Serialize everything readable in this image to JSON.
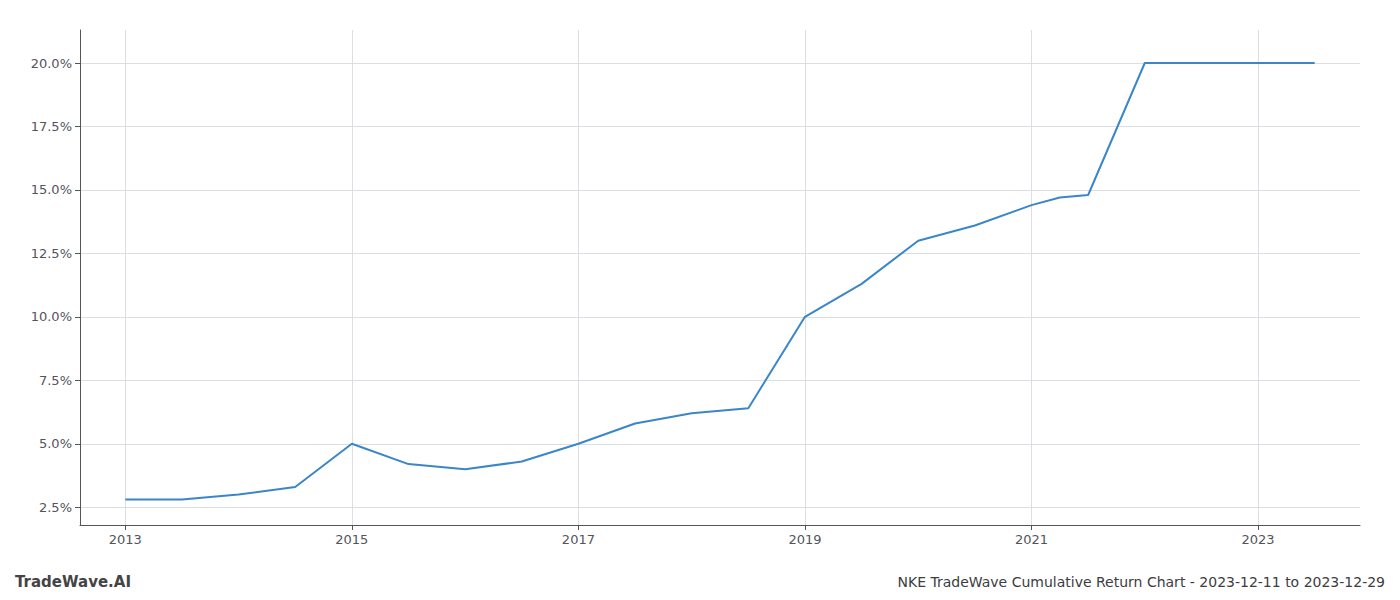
{
  "chart_data": {
    "type": "line",
    "title": "NKE TradeWave Cumulative Return Chart - 2023-12-11 to 2023-12-29",
    "annotations": [
      "TradeWave.AI"
    ],
    "x": [
      2013.0,
      2013.5,
      2014.0,
      2014.5,
      2015.0,
      2015.5,
      2016.0,
      2016.5,
      2017.0,
      2017.5,
      2018.0,
      2018.5,
      2019.0,
      2019.5,
      2020.0,
      2020.5,
      2021.0,
      2021.25,
      2021.5,
      2022.0,
      2022.5,
      2023.0,
      2023.5
    ],
    "values": [
      0.028,
      0.028,
      0.03,
      0.033,
      0.05,
      0.042,
      0.04,
      0.043,
      0.05,
      0.058,
      0.062,
      0.064,
      0.1,
      0.113,
      0.13,
      0.136,
      0.144,
      0.147,
      0.148,
      0.2,
      0.2,
      0.2,
      0.2
    ],
    "color": "#3a86c8",
    "xlim": [
      2012.6,
      2023.9
    ],
    "ylim": [
      0.018,
      0.213
    ],
    "xticks": [
      2013,
      2015,
      2017,
      2019,
      2021,
      2023
    ],
    "yticks": [
      {
        "value": 0.025,
        "label": "2.5%"
      },
      {
        "value": 0.05,
        "label": "5.0%"
      },
      {
        "value": 0.075,
        "label": "7.5%"
      },
      {
        "value": 0.1,
        "label": "10.0%"
      },
      {
        "value": 0.125,
        "label": "12.5%"
      },
      {
        "value": 0.15,
        "label": "15.0%"
      },
      {
        "value": 0.175,
        "label": "17.5%"
      },
      {
        "value": 0.2,
        "label": "20.0%"
      }
    ],
    "grid": true
  }
}
